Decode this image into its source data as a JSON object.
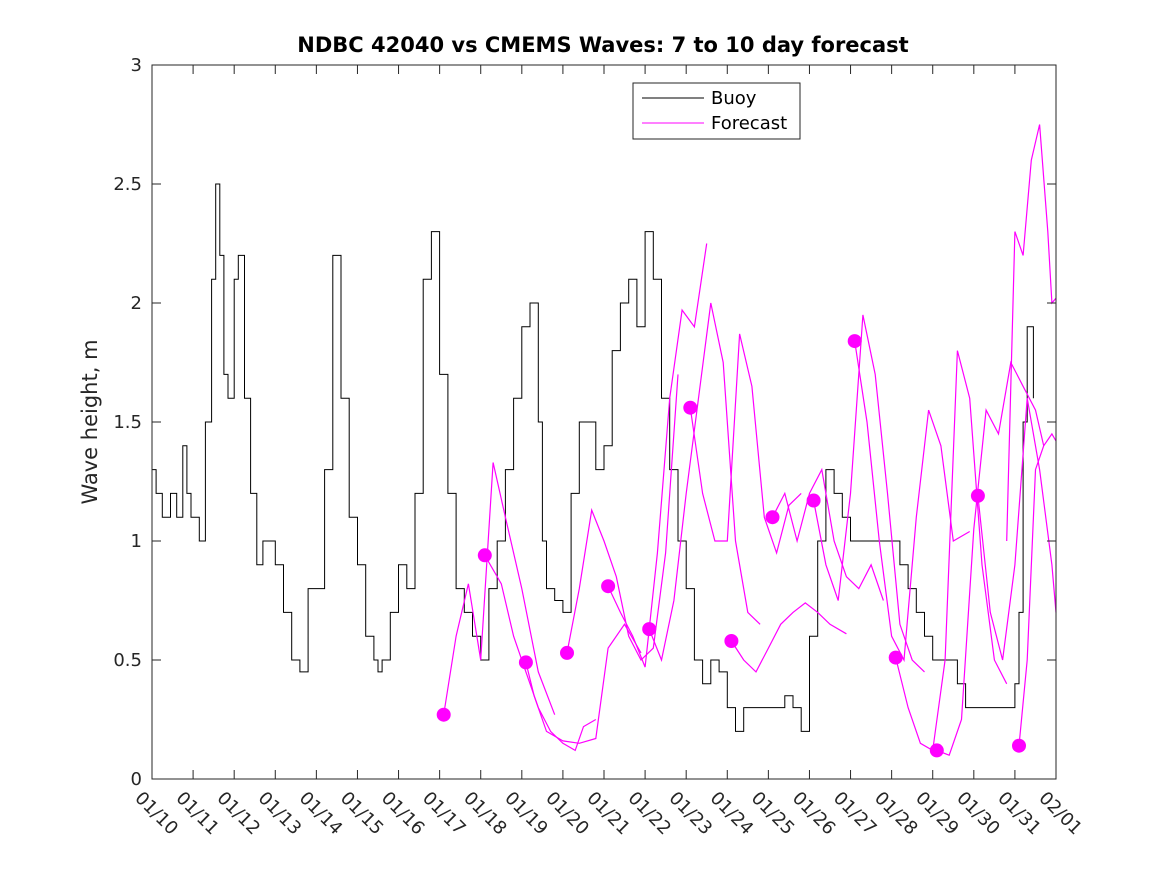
{
  "chart_data": {
    "type": "line",
    "title": "NDBC 42040 vs CMEMS Waves: 7 to 10 day forecast",
    "xlabel": "",
    "ylabel": "Wave height, m",
    "ylim": [
      0,
      3
    ],
    "xlim": [
      0,
      22
    ],
    "x_unit": "days since 01/10",
    "yticks": [
      "0",
      "0.5",
      "1",
      "1.5",
      "2",
      "2.5",
      "3"
    ],
    "xticks": [
      "01/10",
      "01/11",
      "01/12",
      "01/13",
      "01/14",
      "01/15",
      "01/16",
      "01/17",
      "01/18",
      "01/19",
      "01/20",
      "01/21",
      "01/22",
      "01/23",
      "01/24",
      "01/25",
      "01/26",
      "01/27",
      "01/28",
      "01/29",
      "01/30",
      "01/31",
      "02/01"
    ],
    "legend": [
      "Buoy",
      "Forecast"
    ],
    "colors": {
      "buoy": "#000000",
      "forecast": "#ff00ff"
    },
    "buoy": {
      "name": "Buoy",
      "x": [
        0,
        0.1,
        0.25,
        0.45,
        0.6,
        0.75,
        0.85,
        0.95,
        1.05,
        1.15,
        1.3,
        1.45,
        1.55,
        1.65,
        1.75,
        1.85,
        2.0,
        2.1,
        2.25,
        2.4,
        2.55,
        2.7,
        2.85,
        3.0,
        3.2,
        3.4,
        3.6,
        3.8,
        4.0,
        4.2,
        4.4,
        4.6,
        4.8,
        5.0,
        5.2,
        5.4,
        5.5,
        5.6,
        5.8,
        6.0,
        6.2,
        6.4,
        6.6,
        6.8,
        7.0,
        7.2,
        7.4,
        7.6,
        7.8,
        8.0,
        8.2,
        8.4,
        8.6,
        8.8,
        9.0,
        9.2,
        9.4,
        9.5,
        9.6,
        9.8,
        10.0,
        10.2,
        10.4,
        10.6,
        10.8,
        11.0,
        11.2,
        11.4,
        11.6,
        11.8,
        12.0,
        12.2,
        12.4,
        12.6,
        12.8,
        13.0,
        13.2,
        13.4,
        13.6,
        13.8,
        14.0,
        14.2,
        14.4,
        14.6,
        14.8,
        15.0,
        15.2,
        15.4,
        15.6,
        15.8,
        16.0,
        16.2,
        16.4,
        16.6,
        16.8,
        17.0,
        17.2,
        17.4,
        17.6,
        17.8,
        18.0,
        18.2,
        18.4,
        18.6,
        18.8,
        19.0,
        19.2,
        19.4,
        19.6,
        19.8,
        20.0,
        20.2,
        20.4,
        20.6,
        20.8,
        21.0,
        21.1,
        21.2,
        21.3,
        21.45
      ],
      "values": [
        1.3,
        1.2,
        1.1,
        1.2,
        1.1,
        1.4,
        1.2,
        1.1,
        1.1,
        1.0,
        1.5,
        2.1,
        2.5,
        2.2,
        1.7,
        1.6,
        2.1,
        2.2,
        1.6,
        1.2,
        0.9,
        1.0,
        1.0,
        0.9,
        0.7,
        0.5,
        0.45,
        0.8,
        0.8,
        1.3,
        2.2,
        1.6,
        1.1,
        0.9,
        0.6,
        0.5,
        0.45,
        0.5,
        0.7,
        0.9,
        0.8,
        1.2,
        2.1,
        2.3,
        1.7,
        1.2,
        0.8,
        0.7,
        0.6,
        0.5,
        0.8,
        1.0,
        1.3,
        1.6,
        1.9,
        2.0,
        1.5,
        1.0,
        0.8,
        0.75,
        0.7,
        1.2,
        1.5,
        1.5,
        1.3,
        1.4,
        1.8,
        2.0,
        2.1,
        1.9,
        2.3,
        2.1,
        1.6,
        1.3,
        1.0,
        0.8,
        0.5,
        0.4,
        0.5,
        0.45,
        0.3,
        0.2,
        0.3,
        0.3,
        0.3,
        0.3,
        0.3,
        0.35,
        0.3,
        0.2,
        0.6,
        1.0,
        1.3,
        1.2,
        1.1,
        1.0,
        1.0,
        1.0,
        1.0,
        1.0,
        1.0,
        0.9,
        0.8,
        0.7,
        0.6,
        0.5,
        0.5,
        0.5,
        0.4,
        0.3,
        0.3,
        0.3,
        0.3,
        0.3,
        0.3,
        0.4,
        0.7,
        1.5,
        1.9,
        1.6
      ]
    },
    "forecast_runs": [
      {
        "name": "Forecast",
        "x": [
          7.1,
          7.4,
          7.7,
          8.0,
          8.3,
          8.6,
          9.0,
          9.4,
          9.8
        ],
        "values": [
          0.27,
          0.6,
          0.82,
          0.5,
          1.33,
          1.1,
          0.8,
          0.45,
          0.27
        ]
      },
      {
        "name": "Forecast",
        "x": [
          8.1,
          8.5,
          8.8,
          9.1,
          9.4,
          9.7,
          10.0,
          10.3,
          10.5,
          10.8
        ],
        "values": [
          0.94,
          0.82,
          0.6,
          0.45,
          0.3,
          0.2,
          0.15,
          0.12,
          0.22,
          0.25
        ]
      },
      {
        "name": "Forecast",
        "x": [
          9.1,
          9.3,
          9.6,
          10.0,
          10.4,
          10.8,
          11.1,
          11.5,
          11.9
        ],
        "values": [
          0.49,
          0.35,
          0.2,
          0.16,
          0.15,
          0.17,
          0.55,
          0.65,
          0.53
        ]
      },
      {
        "name": "Forecast",
        "x": [
          10.1,
          10.4,
          10.7,
          11.0,
          11.3,
          11.6,
          11.9,
          12.2,
          12.5,
          12.8
        ],
        "values": [
          0.53,
          0.8,
          1.13,
          1.0,
          0.85,
          0.6,
          0.5,
          0.55,
          0.95,
          1.7
        ]
      },
      {
        "name": "Forecast",
        "x": [
          11.1,
          11.4,
          11.7,
          12.0,
          12.3,
          12.6,
          12.9,
          13.2,
          13.5
        ],
        "values": [
          0.81,
          0.7,
          0.6,
          0.47,
          0.95,
          1.6,
          1.97,
          1.9,
          2.25
        ]
      },
      {
        "name": "Forecast",
        "x": [
          12.1,
          12.4,
          12.7,
          13.0,
          13.3,
          13.6,
          13.9,
          14.2,
          14.5,
          14.8
        ],
        "values": [
          0.63,
          0.5,
          0.75,
          1.2,
          1.6,
          2.0,
          1.75,
          1.0,
          0.7,
          0.65
        ]
      },
      {
        "name": "Forecast",
        "x": [
          13.1,
          13.4,
          13.7,
          14.0,
          14.3,
          14.6,
          14.9,
          15.2,
          15.5,
          15.8
        ],
        "values": [
          1.56,
          1.2,
          1.0,
          1.0,
          1.87,
          1.65,
          1.1,
          0.95,
          1.15,
          1.2
        ]
      },
      {
        "name": "Forecast",
        "x": [
          14.1,
          14.4,
          14.7,
          15.0,
          15.3,
          15.6,
          15.9,
          16.2,
          16.5,
          16.9
        ],
        "values": [
          0.58,
          0.5,
          0.45,
          0.55,
          0.65,
          0.7,
          0.74,
          0.7,
          0.65,
          0.61
        ]
      },
      {
        "name": "Forecast",
        "x": [
          15.1,
          15.4,
          15.7,
          16.0,
          16.3,
          16.6,
          16.9,
          17.2,
          17.5,
          17.8
        ],
        "values": [
          1.1,
          1.2,
          1.0,
          1.2,
          1.3,
          1.0,
          0.85,
          0.8,
          0.9,
          0.75
        ]
      },
      {
        "name": "Forecast",
        "x": [
          16.1,
          16.4,
          16.7,
          17.0,
          17.3,
          17.6,
          17.9,
          18.2,
          18.5,
          18.8
        ],
        "values": [
          1.17,
          0.9,
          0.75,
          1.2,
          1.95,
          1.7,
          1.2,
          0.65,
          0.5,
          0.45
        ]
      },
      {
        "name": "Forecast",
        "x": [
          17.1,
          17.4,
          17.7,
          18.0,
          18.3,
          18.6,
          18.9,
          19.2,
          19.5,
          19.9
        ],
        "values": [
          1.84,
          1.5,
          1.0,
          0.6,
          0.5,
          1.1,
          1.55,
          1.4,
          1.0,
          1.04
        ]
      },
      {
        "name": "Forecast",
        "x": [
          18.1,
          18.4,
          18.7,
          19.0,
          19.3,
          19.6,
          19.9,
          20.2,
          20.5,
          20.8
        ],
        "values": [
          0.51,
          0.3,
          0.15,
          0.12,
          0.5,
          1.8,
          1.6,
          0.9,
          0.5,
          0.4
        ]
      },
      {
        "name": "Forecast",
        "x": [
          19.1,
          19.4,
          19.7,
          20.0,
          20.3,
          20.6,
          20.9,
          21.2,
          21.5,
          21.7
        ],
        "values": [
          0.12,
          0.1,
          0.25,
          1.05,
          1.55,
          1.45,
          1.75,
          1.65,
          1.55,
          1.4
        ]
      },
      {
        "name": "Forecast",
        "x": [
          20.1,
          20.4,
          20.7,
          21.0,
          21.3,
          21.6,
          21.9,
          22.0
        ],
        "values": [
          1.19,
          0.7,
          0.5,
          0.9,
          1.6,
          1.3,
          0.9,
          0.7
        ]
      },
      {
        "name": "Forecast",
        "x": [
          21.1,
          21.3,
          21.5,
          21.7,
          21.9,
          22.0
        ],
        "values": [
          0.14,
          0.5,
          1.3,
          1.4,
          1.45,
          1.42
        ]
      },
      {
        "name": "Forecast",
        "x": [
          20.8,
          21.0,
          21.2,
          21.4,
          21.6,
          21.8,
          21.9,
          22.0
        ],
        "values": [
          1.0,
          2.3,
          2.2,
          2.6,
          2.75,
          2.3,
          2.0,
          2.02
        ]
      }
    ],
    "forecast_markers": {
      "x": [
        7.1,
        8.1,
        9.1,
        10.1,
        11.1,
        12.1,
        13.1,
        14.1,
        15.1,
        16.1,
        17.1,
        18.1,
        19.1,
        20.1,
        21.1
      ],
      "values": [
        0.27,
        0.94,
        0.49,
        0.53,
        0.81,
        0.63,
        1.56,
        0.58,
        1.1,
        1.17,
        1.84,
        0.51,
        0.12,
        1.19,
        0.14
      ]
    }
  }
}
